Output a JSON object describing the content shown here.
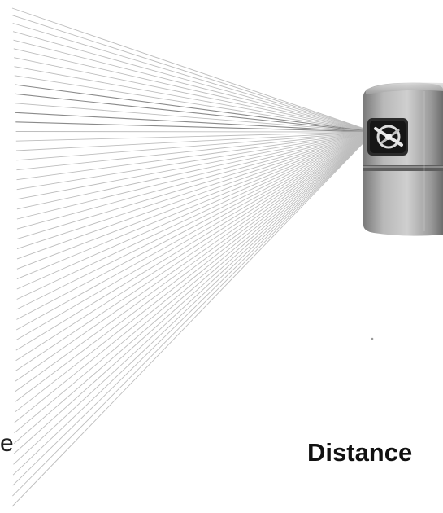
{
  "labels": {
    "distance": "Distance",
    "left_fragment": "e"
  },
  "colors": {
    "beam": "#bdbdbd",
    "beam_dark": "#8a8a8a",
    "sensor_light": "#d9d9d9",
    "sensor_mid": "#a6a6a6",
    "sensor_dark": "#6f6f6f",
    "lens": "#1a1a1a"
  },
  "icons": {
    "sensor": "lidar-sensor-icon"
  }
}
